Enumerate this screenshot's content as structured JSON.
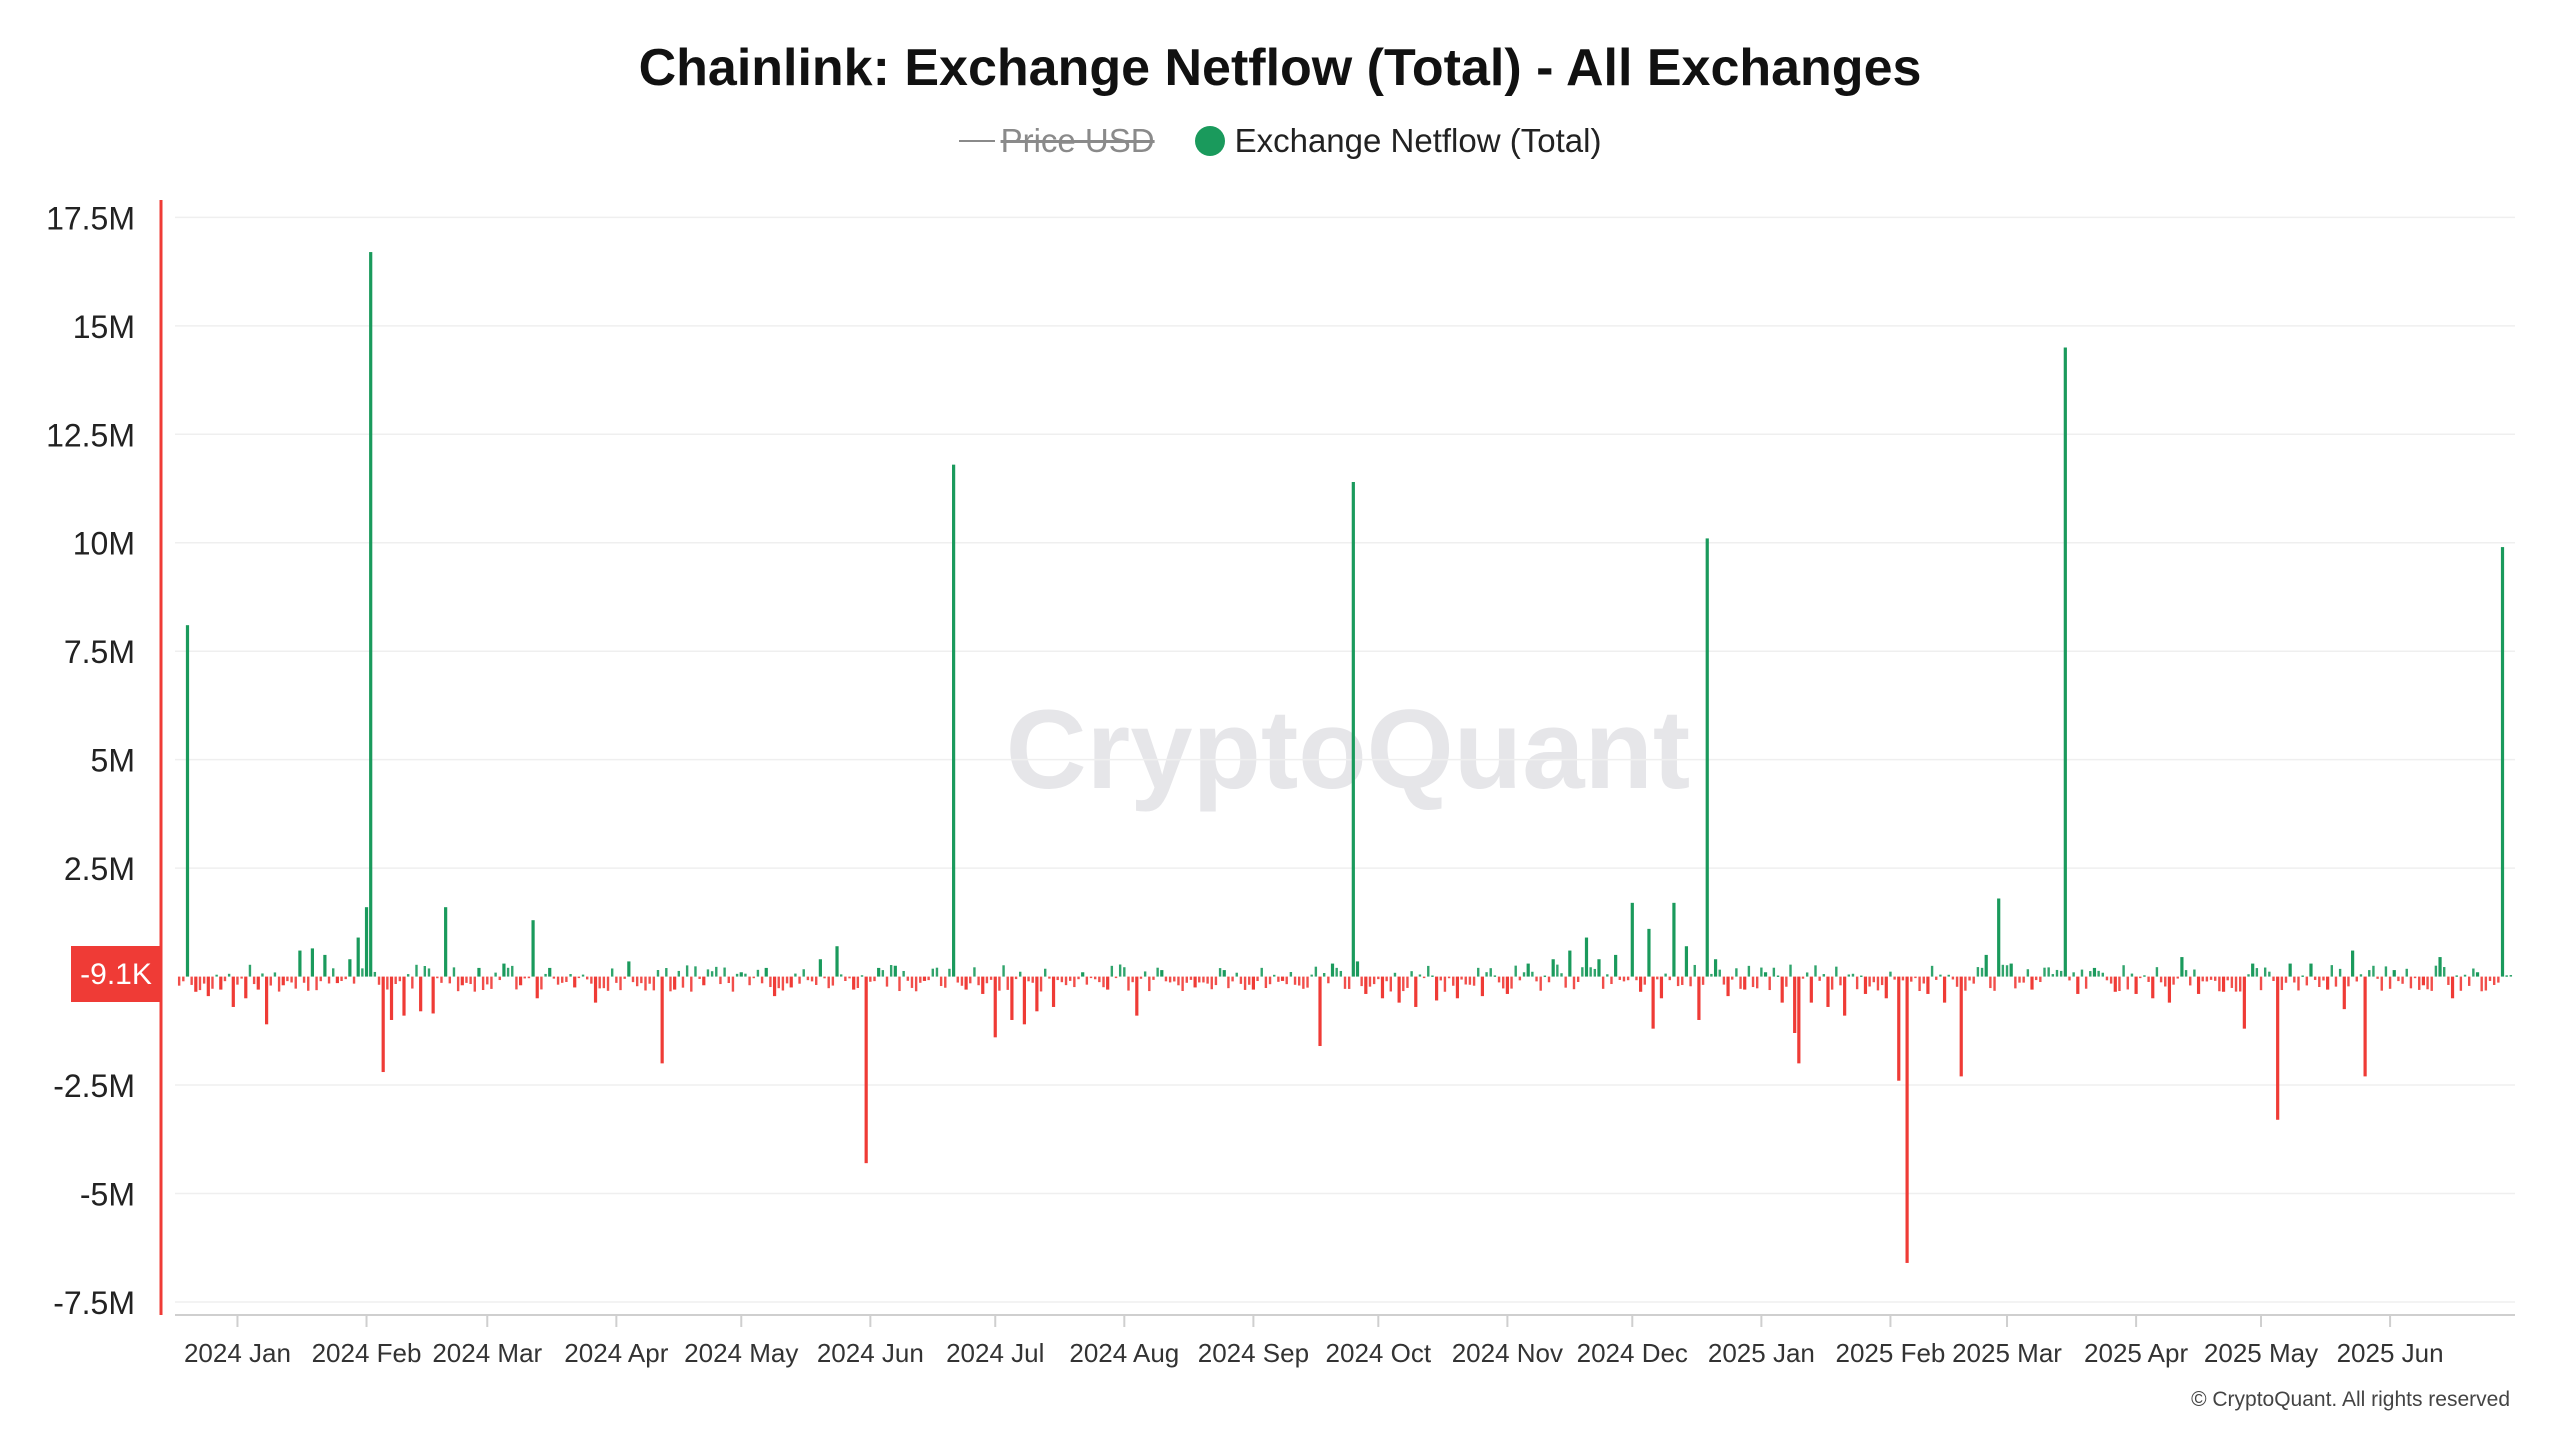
{
  "chart_data": {
    "type": "bar",
    "title": "Chainlink: Exchange Netflow (Total) - All Exchanges",
    "legend": [
      {
        "label": "Price USD",
        "hidden": true,
        "color": "#8a8a8a"
      },
      {
        "label": "Exchange Netflow (Total)",
        "hidden": false,
        "color": "#1a9a5c"
      }
    ],
    "legend_position": "top-center",
    "positive_color": "#1a9a5c",
    "negative_color": "#ef3b36",
    "current_value_label": "-9.1K",
    "y_ticks": [
      {
        "value": 17500000,
        "label": "17.5M"
      },
      {
        "value": 15000000,
        "label": "15M"
      },
      {
        "value": 12500000,
        "label": "12.5M"
      },
      {
        "value": 10000000,
        "label": "10M"
      },
      {
        "value": 7500000,
        "label": "7.5M"
      },
      {
        "value": 5000000,
        "label": "5M"
      },
      {
        "value": 2500000,
        "label": "2.5M"
      },
      {
        "value": -2500000,
        "label": "-2.5M"
      },
      {
        "value": -5000000,
        "label": "-5M"
      },
      {
        "value": -7500000,
        "label": "-7.5M"
      }
    ],
    "ylim": [
      -7800000,
      17900000
    ],
    "x_range": [
      "2023-12-17",
      "2025-07-01"
    ],
    "x_ticks": [
      {
        "date": "2024-01-01",
        "label": "2024 Jan"
      },
      {
        "date": "2024-02-01",
        "label": "2024 Feb"
      },
      {
        "date": "2024-03-01",
        "label": "2024 Mar"
      },
      {
        "date": "2024-04-01",
        "label": "2024 Apr"
      },
      {
        "date": "2024-05-01",
        "label": "2024 May"
      },
      {
        "date": "2024-06-01",
        "label": "2024 Jun"
      },
      {
        "date": "2024-07-01",
        "label": "2024 Jul"
      },
      {
        "date": "2024-08-01",
        "label": "2024 Aug"
      },
      {
        "date": "2024-09-01",
        "label": "2024 Sep"
      },
      {
        "date": "2024-10-01",
        "label": "2024 Oct"
      },
      {
        "date": "2024-11-01",
        "label": "2024 Nov"
      },
      {
        "date": "2024-12-01",
        "label": "2024 Dec"
      },
      {
        "date": "2025-01-01",
        "label": "2025 Jan"
      },
      {
        "date": "2025-02-01",
        "label": "2025 Feb"
      },
      {
        "date": "2025-03-01",
        "label": "2025 Mar"
      },
      {
        "date": "2025-04-01",
        "label": "2025 Apr"
      },
      {
        "date": "2025-05-01",
        "label": "2025 May"
      },
      {
        "date": "2025-06-01",
        "label": "2025 Jun"
      }
    ],
    "grid": true,
    "series": [
      {
        "name": "Exchange Netflow (Total)",
        "points": [
          [
            "2023-12-20",
            8100000
          ],
          [
            "2023-12-22",
            -350000
          ],
          [
            "2023-12-25",
            -450000
          ],
          [
            "2023-12-28",
            -300000
          ],
          [
            "2023-12-31",
            -700000
          ],
          [
            "2024-01-03",
            -500000
          ],
          [
            "2024-01-06",
            -300000
          ],
          [
            "2024-01-08",
            -1100000
          ],
          [
            "2024-01-12",
            -200000
          ],
          [
            "2024-01-16",
            600000
          ],
          [
            "2024-01-19",
            650000
          ],
          [
            "2024-01-22",
            500000
          ],
          [
            "2024-01-25",
            -150000
          ],
          [
            "2024-01-28",
            400000
          ],
          [
            "2024-01-30",
            900000
          ],
          [
            "2024-02-01",
            1600000
          ],
          [
            "2024-02-02",
            16700000
          ],
          [
            "2024-02-05",
            -2200000
          ],
          [
            "2024-02-07",
            -1000000
          ],
          [
            "2024-02-10",
            -900000
          ],
          [
            "2024-02-14",
            -800000
          ],
          [
            "2024-02-17",
            -850000
          ],
          [
            "2024-02-20",
            1600000
          ],
          [
            "2024-02-24",
            -200000
          ],
          [
            "2024-02-28",
            200000
          ],
          [
            "2024-03-05",
            300000
          ],
          [
            "2024-03-09",
            -200000
          ],
          [
            "2024-03-12",
            1300000
          ],
          [
            "2024-03-13",
            -500000
          ],
          [
            "2024-03-16",
            200000
          ],
          [
            "2024-03-22",
            -250000
          ],
          [
            "2024-03-27",
            -600000
          ],
          [
            "2024-04-04",
            350000
          ],
          [
            "2024-04-12",
            -2000000
          ],
          [
            "2024-04-15",
            -300000
          ],
          [
            "2024-04-22",
            -200000
          ],
          [
            "2024-05-01",
            100000
          ],
          [
            "2024-05-07",
            200000
          ],
          [
            "2024-05-09",
            -450000
          ],
          [
            "2024-05-13",
            -250000
          ],
          [
            "2024-05-20",
            400000
          ],
          [
            "2024-05-24",
            700000
          ],
          [
            "2024-05-28",
            -300000
          ],
          [
            "2024-05-31",
            -4300000
          ],
          [
            "2024-06-03",
            200000
          ],
          [
            "2024-06-07",
            250000
          ],
          [
            "2024-06-14",
            -100000
          ],
          [
            "2024-06-21",
            11800000
          ],
          [
            "2024-06-24",
            -300000
          ],
          [
            "2024-06-28",
            -400000
          ],
          [
            "2024-07-01",
            -1400000
          ],
          [
            "2024-07-05",
            -1000000
          ],
          [
            "2024-07-08",
            -1100000
          ],
          [
            "2024-07-11",
            -800000
          ],
          [
            "2024-07-15",
            -700000
          ],
          [
            "2024-07-22",
            100000
          ],
          [
            "2024-07-28",
            -300000
          ],
          [
            "2024-08-04",
            -900000
          ],
          [
            "2024-08-10",
            150000
          ],
          [
            "2024-08-18",
            -250000
          ],
          [
            "2024-08-25",
            150000
          ],
          [
            "2024-09-01",
            -300000
          ],
          [
            "2024-09-08",
            -100000
          ],
          [
            "2024-09-17",
            -1600000
          ],
          [
            "2024-09-20",
            300000
          ],
          [
            "2024-09-25",
            11400000
          ],
          [
            "2024-09-26",
            350000
          ],
          [
            "2024-09-28",
            -400000
          ],
          [
            "2024-10-02",
            -500000
          ],
          [
            "2024-10-06",
            -600000
          ],
          [
            "2024-10-10",
            -700000
          ],
          [
            "2024-10-15",
            -550000
          ],
          [
            "2024-10-20",
            -500000
          ],
          [
            "2024-10-26",
            -450000
          ],
          [
            "2024-11-01",
            -400000
          ],
          [
            "2024-11-06",
            300000
          ],
          [
            "2024-11-12",
            400000
          ],
          [
            "2024-11-16",
            600000
          ],
          [
            "2024-11-20",
            900000
          ],
          [
            "2024-11-23",
            400000
          ],
          [
            "2024-11-27",
            500000
          ],
          [
            "2024-12-01",
            1700000
          ],
          [
            "2024-12-03",
            -350000
          ],
          [
            "2024-12-05",
            1100000
          ],
          [
            "2024-12-06",
            -1200000
          ],
          [
            "2024-12-08",
            -500000
          ],
          [
            "2024-12-11",
            1700000
          ],
          [
            "2024-12-14",
            700000
          ],
          [
            "2024-12-17",
            -1000000
          ],
          [
            "2024-12-19",
            10100000
          ],
          [
            "2024-12-21",
            400000
          ],
          [
            "2024-12-24",
            -450000
          ],
          [
            "2024-12-28",
            -300000
          ],
          [
            "2025-01-02",
            100000
          ],
          [
            "2025-01-06",
            -600000
          ],
          [
            "2025-01-09",
            -1300000
          ],
          [
            "2025-01-10",
            -2000000
          ],
          [
            "2025-01-13",
            -600000
          ],
          [
            "2025-01-17",
            -700000
          ],
          [
            "2025-01-21",
            -900000
          ],
          [
            "2025-01-26",
            -400000
          ],
          [
            "2025-01-31",
            -500000
          ],
          [
            "2025-02-03",
            -2400000
          ],
          [
            "2025-02-05",
            -6600000
          ],
          [
            "2025-02-10",
            -400000
          ],
          [
            "2025-02-14",
            -600000
          ],
          [
            "2025-02-18",
            -2300000
          ],
          [
            "2025-02-24",
            500000
          ],
          [
            "2025-02-27",
            1800000
          ],
          [
            "2025-03-02",
            300000
          ],
          [
            "2025-03-07",
            -300000
          ],
          [
            "2025-03-15",
            14500000
          ],
          [
            "2025-03-18",
            -400000
          ],
          [
            "2025-03-22",
            200000
          ],
          [
            "2025-03-27",
            -350000
          ],
          [
            "2025-04-01",
            -400000
          ],
          [
            "2025-04-05",
            -500000
          ],
          [
            "2025-04-09",
            -600000
          ],
          [
            "2025-04-12",
            450000
          ],
          [
            "2025-04-16",
            -400000
          ],
          [
            "2025-04-22",
            -350000
          ],
          [
            "2025-04-27",
            -1200000
          ],
          [
            "2025-04-29",
            300000
          ],
          [
            "2025-05-05",
            -3300000
          ],
          [
            "2025-05-08",
            300000
          ],
          [
            "2025-05-13",
            300000
          ],
          [
            "2025-05-17",
            -300000
          ],
          [
            "2025-05-21",
            -750000
          ],
          [
            "2025-05-23",
            600000
          ],
          [
            "2025-05-26",
            -2300000
          ],
          [
            "2025-06-02",
            150000
          ],
          [
            "2025-06-09",
            -200000
          ],
          [
            "2025-06-13",
            450000
          ],
          [
            "2025-06-16",
            -500000
          ],
          [
            "2025-06-22",
            100000
          ],
          [
            "2025-06-28",
            9900000
          ]
        ]
      }
    ]
  },
  "watermark": "CryptoQuant",
  "credit": "© CryptoQuant. All rights reserved"
}
